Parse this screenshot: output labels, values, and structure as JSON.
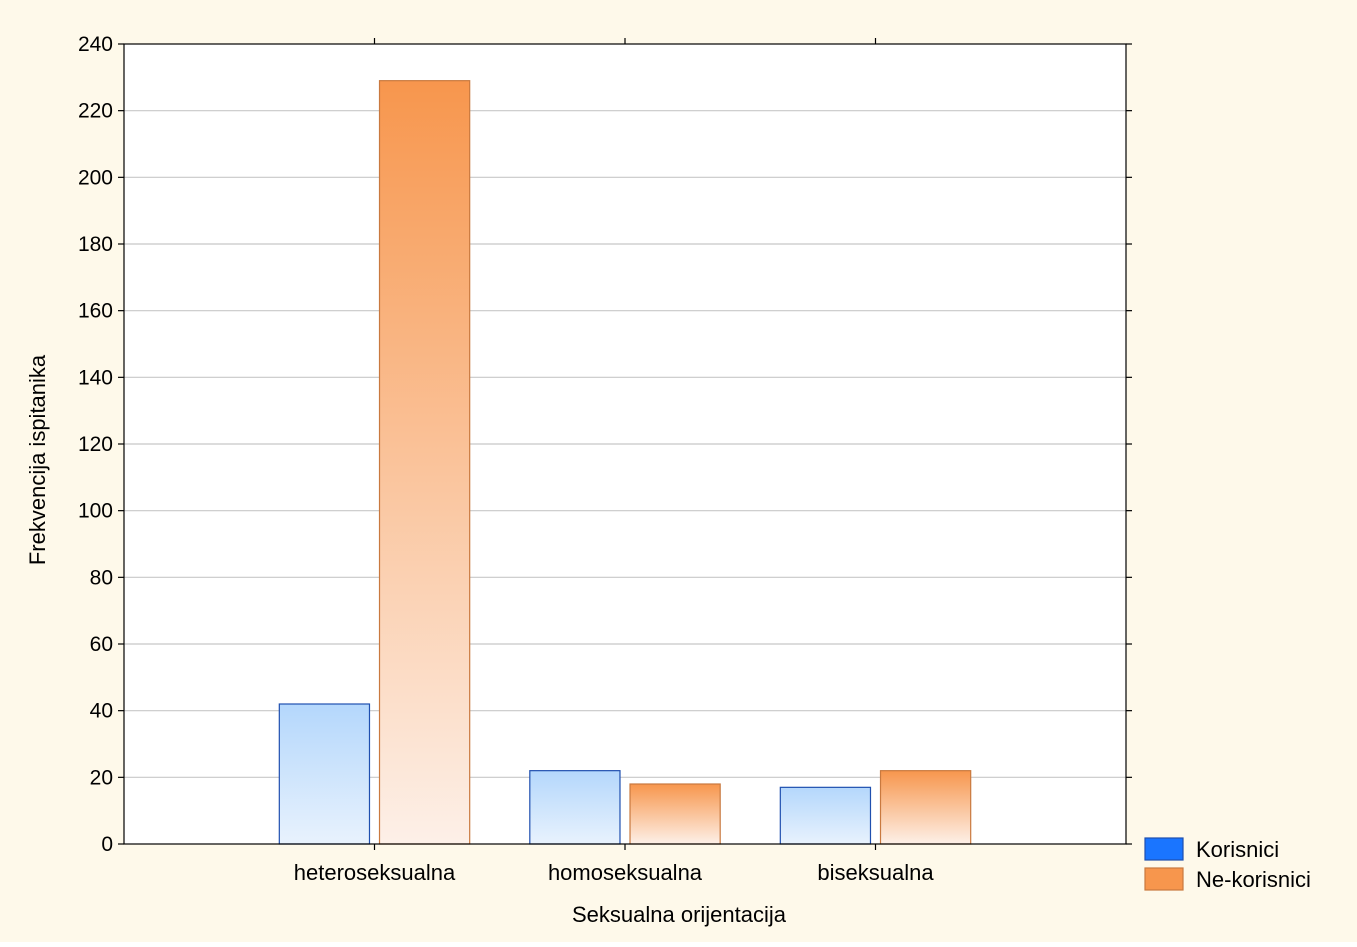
{
  "colors": {
    "page_background": "#FEF9EA",
    "plot_background": "#FFFFFF",
    "gridline": "#C8C8C8",
    "axis": "#000000"
  },
  "chart_data": {
    "type": "bar",
    "title": "",
    "xlabel": "Seksualna orijentacija",
    "ylabel": "Frekvencija ispitanika",
    "categories": [
      "heteroseksualna",
      "homoseksualna",
      "biseksualna"
    ],
    "series": [
      {
        "name": "Korisnici",
        "values": [
          42,
          22,
          17
        ],
        "color": "#1A75FF",
        "border_color": "#1F4FAF",
        "gradient_top": "#B4D7FC",
        "gradient_bottom": "#E8F2FD"
      },
      {
        "name": "Ne-korisnici",
        "values": [
          229,
          18,
          22
        ],
        "color": "#F7964D",
        "border_color": "#C9793F",
        "gradient_top": "#F7964D",
        "gradient_bottom": "#FDF0E8"
      }
    ],
    "ylim": [
      0,
      240
    ],
    "yticks": [
      0,
      20,
      40,
      60,
      80,
      100,
      120,
      140,
      160,
      180,
      200,
      220,
      240
    ],
    "grid": true,
    "legend_position": "bottom-right"
  }
}
